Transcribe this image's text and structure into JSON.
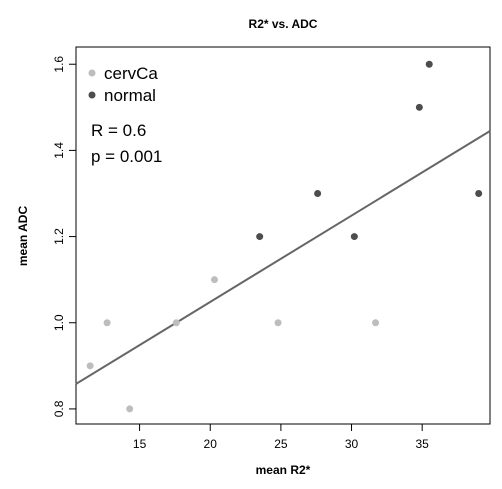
{
  "chart_data": {
    "type": "scatter",
    "title": "R2* vs. ADC",
    "xlabel": "mean R2*",
    "ylabel": "mean ADC",
    "xlim": [
      10.5,
      39.8
    ],
    "ylim": [
      0.765,
      1.64
    ],
    "xticks": [
      15,
      20,
      25,
      30,
      35
    ],
    "yticks": [
      0.8,
      1.0,
      1.2,
      1.4,
      1.6
    ],
    "grid": false,
    "legend": "top-left",
    "series": [
      {
        "name": "cervCa",
        "color": "#bdbdbd",
        "points": [
          {
            "x": 11.5,
            "y": 0.9
          },
          {
            "x": 12.7,
            "y": 1.0
          },
          {
            "x": 14.3,
            "y": 0.8
          },
          {
            "x": 17.6,
            "y": 1.0
          },
          {
            "x": 20.3,
            "y": 1.1
          },
          {
            "x": 24.8,
            "y": 1.0
          },
          {
            "x": 31.7,
            "y": 1.0
          }
        ]
      },
      {
        "name": "normal",
        "color": "#4d4d4d",
        "points": [
          {
            "x": 23.5,
            "y": 1.2
          },
          {
            "x": 27.6,
            "y": 1.3
          },
          {
            "x": 30.2,
            "y": 1.2
          },
          {
            "x": 34.8,
            "y": 1.5
          },
          {
            "x": 35.5,
            "y": 1.6
          },
          {
            "x": 39.0,
            "y": 1.3
          }
        ]
      }
    ],
    "regression_line": {
      "color": "#666666",
      "x": [
        10.5,
        39.8
      ],
      "y": [
        0.858,
        1.445
      ]
    },
    "annotations": [
      "R = 0.6",
      "p = 0.001"
    ]
  }
}
